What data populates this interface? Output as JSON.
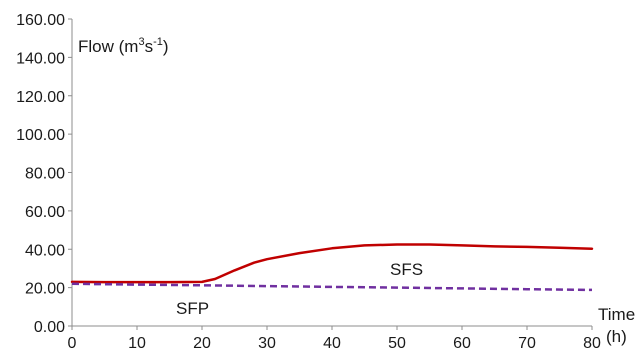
{
  "chart_data": {
    "type": "line",
    "ylabel_main": "Flow (m",
    "ylabel_sup1": "3",
    "ylabel_mid": "s",
    "ylabel_sup2": "-1",
    "ylabel_end": ")",
    "xlabel_line1": "Time",
    "xlabel_line2": "(h)",
    "xlim": [
      0,
      80
    ],
    "ylim": [
      0,
      160
    ],
    "x_ticks": [
      0,
      10,
      20,
      30,
      40,
      50,
      60,
      70,
      80
    ],
    "y_ticks": [
      "0.00",
      "20.00",
      "40.00",
      "60.00",
      "80.00",
      "100.00",
      "120.00",
      "140.00",
      "160.00"
    ],
    "grid": "none",
    "series": [
      {
        "name": "SFS",
        "color": "#c00000",
        "style": "solid",
        "x": [
          0,
          5,
          10,
          15,
          20,
          22,
          25,
          28,
          30,
          35,
          40,
          45,
          50,
          55,
          60,
          65,
          70,
          75,
          80
        ],
        "y": [
          23.0,
          22.9,
          22.9,
          22.9,
          23.0,
          24.5,
          29.0,
          33.0,
          34.8,
          38.0,
          40.5,
          42.0,
          42.5,
          42.5,
          42.0,
          41.5,
          41.2,
          40.8,
          40.3
        ]
      },
      {
        "name": "SFP",
        "color": "#7030a0",
        "style": "dashed",
        "x": [
          0,
          10,
          20,
          30,
          40,
          50,
          60,
          70,
          80
        ],
        "y": [
          22.0,
          21.6,
          21.2,
          20.8,
          20.4,
          20.0,
          19.6,
          19.2,
          18.8
        ]
      }
    ],
    "labels": [
      {
        "text": "SFS",
        "series": "SFS"
      },
      {
        "text": "SFP",
        "series": "SFP"
      }
    ]
  }
}
